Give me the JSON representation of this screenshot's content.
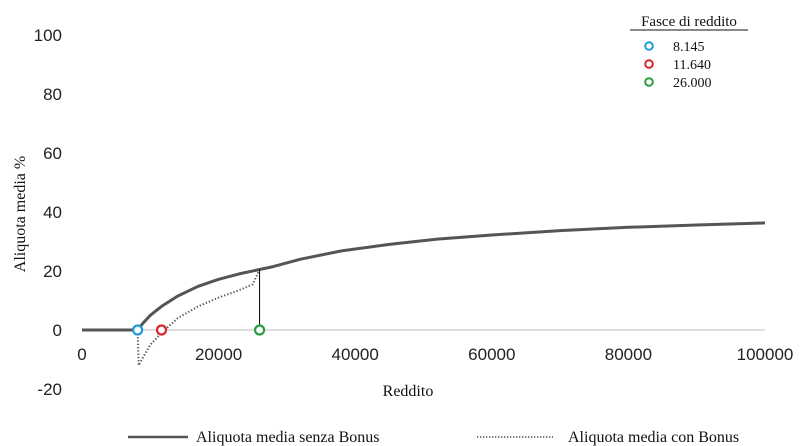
{
  "chart_data": {
    "type": "line",
    "xlabel": "Reddito",
    "ylabel": "Aliquota media %",
    "xlim": [
      0,
      100000
    ],
    "ylim": [
      -20,
      100
    ],
    "x_ticks": [
      0,
      20000,
      40000,
      60000,
      80000,
      100000
    ],
    "x_tick_labels": [
      "0",
      "20000",
      "40000",
      "60000",
      "80000",
      "100000"
    ],
    "y_ticks": [
      100,
      80,
      60,
      40,
      20,
      0,
      -20
    ],
    "y_tick_labels": [
      "100",
      "80",
      "60",
      "40",
      "20",
      "0",
      "-20"
    ],
    "grid": false,
    "series": [
      {
        "name": "Aliquota media senza Bonus",
        "style": "solid",
        "color": "#555555",
        "x": [
          0,
          8145,
          9000,
          10000,
          11640,
          14000,
          17000,
          20000,
          23000,
          26000,
          28000,
          32000,
          38000,
          45000,
          52000,
          60000,
          70000,
          80000,
          90000,
          100000
        ],
        "y": [
          0,
          0,
          2.5,
          5,
          8,
          11.5,
          14.8,
          17.2,
          19,
          20.5,
          21.5,
          24,
          26.8,
          29,
          30.8,
          32.2,
          33.7,
          34.8,
          35.6,
          36.3
        ]
      },
      {
        "name": "Aliquota media con Bonus",
        "style": "dotted",
        "color": "#555555",
        "x": [
          0,
          8145,
          8300,
          9000,
          10000,
          11640,
          14000,
          17000,
          20000,
          23000,
          25000,
          25800,
          26000,
          28000,
          32000,
          38000,
          45000,
          52000,
          60000,
          70000,
          80000,
          90000,
          100000
        ],
        "y": [
          0,
          0,
          -12,
          -9,
          -5,
          -1,
          4,
          8,
          11,
          13.5,
          15.5,
          19.5,
          20.5,
          21.5,
          24,
          26.8,
          29,
          30.8,
          32.2,
          33.7,
          34.8,
          35.6,
          36.3
        ]
      }
    ],
    "vertical_line": {
      "x": 26000,
      "y_from": 0,
      "y_to": 20.5
    },
    "fasce": {
      "title": "Fasce di reddito",
      "items": [
        {
          "label": "8.145",
          "x": 8145,
          "y": 0,
          "color": "#1f9bd7"
        },
        {
          "label": "11.640",
          "x": 11640,
          "y": 0,
          "color": "#d9262b"
        },
        {
          "label": "26.000",
          "x": 26000,
          "y": 0,
          "color": "#2a9d3c"
        }
      ]
    },
    "legend": {
      "placement": "bottom",
      "items": [
        {
          "label": "Aliquota media senza Bonus",
          "style": "solid"
        },
        {
          "label": "Aliquota media con Bonus",
          "style": "dotted"
        }
      ]
    }
  }
}
